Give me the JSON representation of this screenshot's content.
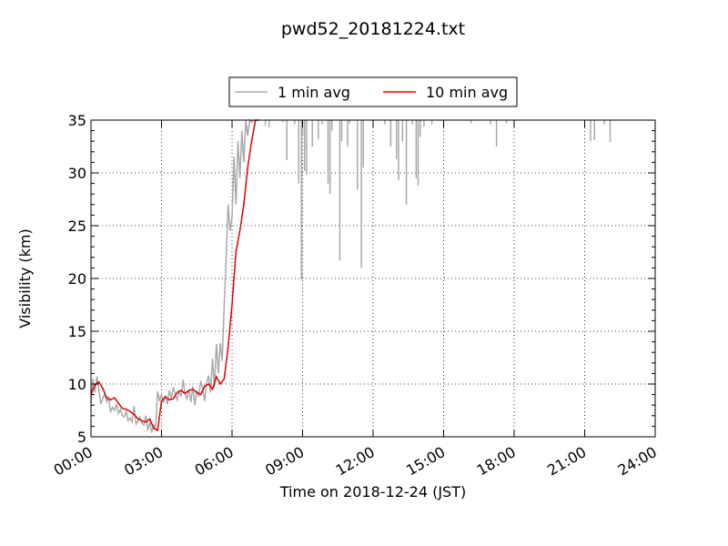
{
  "chart_data": {
    "type": "line",
    "title": "pwd52_20181224.txt",
    "xlabel": "Time on 2018-12-24 (JST)",
    "ylabel": "Visibility (km)",
    "xlim": [
      "00:00",
      "24:00"
    ],
    "ylim": [
      5,
      35
    ],
    "x_ticks": [
      "00:00",
      "03:00",
      "06:00",
      "09:00",
      "12:00",
      "15:00",
      "18:00",
      "21:00",
      "24:00"
    ],
    "y_ticks": [
      5,
      10,
      15,
      20,
      25,
      30,
      35
    ],
    "grid": true,
    "legend": {
      "placement": "top-center",
      "entries": [
        "1 min avg",
        "10 min avg"
      ]
    },
    "colors": {
      "1 min avg": "#a9a9a9",
      "10 min avg": "#e00000"
    },
    "series": [
      {
        "name": "1 min avg",
        "x": [
          "00:00",
          "00:05",
          "00:10",
          "00:15",
          "00:20",
          "00:25",
          "00:30",
          "00:35",
          "00:40",
          "00:45",
          "00:50",
          "00:55",
          "01:00",
          "01:05",
          "01:10",
          "01:15",
          "01:20",
          "01:25",
          "01:30",
          "01:35",
          "01:40",
          "01:45",
          "01:50",
          "01:55",
          "02:00",
          "02:05",
          "02:10",
          "02:15",
          "02:20",
          "02:25",
          "02:30",
          "02:35",
          "02:40",
          "02:45",
          "02:50",
          "02:55",
          "03:00",
          "03:05",
          "03:10",
          "03:15",
          "03:20",
          "03:25",
          "03:30",
          "03:35",
          "03:40",
          "03:45",
          "03:50",
          "03:55",
          "04:00",
          "04:05",
          "04:10",
          "04:15",
          "04:20",
          "04:25",
          "04:30",
          "04:35",
          "04:40",
          "04:45",
          "04:50",
          "04:55",
          "05:00",
          "05:05",
          "05:10",
          "05:15",
          "05:20",
          "05:25",
          "05:30",
          "05:35",
          "05:40",
          "05:45",
          "05:50",
          "05:55",
          "06:00",
          "06:05",
          "06:10",
          "06:15",
          "06:20",
          "06:25",
          "06:30",
          "06:35",
          "06:40",
          "06:45",
          "06:50",
          "06:55",
          "07:00",
          "07:05"
        ],
        "y": [
          8.2,
          10.5,
          9.2,
          10.7,
          9.5,
          8.1,
          8.6,
          9.1,
          8.3,
          8.8,
          7.4,
          7.8,
          7.5,
          8.1,
          7.2,
          7.6,
          7.0,
          6.9,
          7.4,
          6.5,
          6.8,
          6.4,
          7.9,
          6.2,
          6.5,
          6.9,
          6.3,
          6.1,
          7.0,
          5.6,
          6.4,
          5.4,
          6.1,
          5.8,
          9.3,
          8.4,
          9.0,
          8.2,
          8.9,
          8.1,
          9.4,
          8.6,
          9.7,
          9.0,
          8.5,
          9.3,
          8.8,
          10.4,
          9.1,
          8.6,
          9.5,
          8.3,
          9.8,
          8.0,
          9.4,
          8.8,
          10.3,
          9.6,
          8.4,
          10.1,
          10.8,
          9.2,
          12.4,
          9.6,
          13.8,
          11.0,
          13.9,
          12.2,
          17.5,
          22.0,
          27.0,
          24.5,
          25.8,
          31.5,
          27.0,
          33.0,
          29.5,
          34.0,
          31.0,
          35.0,
          33.5,
          35.0,
          34.8,
          35.0,
          35.0,
          35.0
        ]
      },
      {
        "name": "10 min avg",
        "x": [
          "00:00",
          "00:10",
          "00:20",
          "00:30",
          "00:40",
          "00:50",
          "01:00",
          "01:10",
          "01:20",
          "01:30",
          "01:40",
          "01:50",
          "02:00",
          "02:10",
          "02:20",
          "02:30",
          "02:40",
          "02:50",
          "03:00",
          "03:10",
          "03:20",
          "03:30",
          "03:40",
          "03:50",
          "04:00",
          "04:10",
          "04:20",
          "04:30",
          "04:40",
          "04:50",
          "05:00",
          "05:10",
          "05:20",
          "05:30",
          "05:40",
          "05:50",
          "06:00",
          "06:10",
          "06:20",
          "06:30",
          "06:40",
          "06:50",
          "07:00",
          "07:10"
        ],
        "y": [
          9.0,
          9.9,
          10.2,
          9.6,
          8.7,
          8.5,
          8.7,
          8.2,
          7.7,
          7.6,
          7.4,
          7.1,
          6.7,
          6.5,
          6.4,
          6.7,
          5.8,
          5.6,
          8.4,
          8.8,
          8.5,
          8.6,
          9.2,
          9.4,
          9.1,
          9.4,
          9.5,
          9.2,
          9.0,
          9.8,
          10.0,
          9.5,
          10.7,
          10.0,
          10.5,
          13.5,
          17.5,
          22.5,
          24.5,
          27.0,
          30.5,
          33.0,
          35.0,
          35.0
        ]
      },
      {
        "name": "",
        "role": "1 min avg upward spikes beyond plotted range; values are minimum dips from 35 km",
        "spikes": [
          {
            "x": "07:25",
            "y": 34.5
          },
          {
            "x": "07:35",
            "y": 34.3
          },
          {
            "x": "08:10",
            "y": 34.8
          },
          {
            "x": "08:20",
            "y": 31.2
          },
          {
            "x": "08:40",
            "y": 34.6
          },
          {
            "x": "08:50",
            "y": 29.0
          },
          {
            "x": "08:57",
            "y": 19.9
          },
          {
            "x": "09:00",
            "y": 33.5
          },
          {
            "x": "09:05",
            "y": 30.2
          },
          {
            "x": "09:10",
            "y": 29.8
          },
          {
            "x": "09:25",
            "y": 32.5
          },
          {
            "x": "09:40",
            "y": 33.2
          },
          {
            "x": "09:50",
            "y": 34.6
          },
          {
            "x": "10:05",
            "y": 29.0
          },
          {
            "x": "10:10",
            "y": 28.0
          },
          {
            "x": "10:15",
            "y": 34.0
          },
          {
            "x": "10:35",
            "y": 21.7
          },
          {
            "x": "10:40",
            "y": 33.0
          },
          {
            "x": "10:55",
            "y": 32.5
          },
          {
            "x": "11:00",
            "y": 34.7
          },
          {
            "x": "11:20",
            "y": 28.4
          },
          {
            "x": "11:30",
            "y": 21.0
          },
          {
            "x": "11:35",
            "y": 30.5
          },
          {
            "x": "12:30",
            "y": 34.6
          },
          {
            "x": "12:45",
            "y": 32.5
          },
          {
            "x": "13:00",
            "y": 31.3
          },
          {
            "x": "13:05",
            "y": 29.3
          },
          {
            "x": "13:15",
            "y": 33.0
          },
          {
            "x": "13:25",
            "y": 27.0
          },
          {
            "x": "13:40",
            "y": 34.6
          },
          {
            "x": "13:50",
            "y": 29.5
          },
          {
            "x": "13:55",
            "y": 28.8
          },
          {
            "x": "14:00",
            "y": 33.4
          },
          {
            "x": "14:10",
            "y": 34.4
          },
          {
            "x": "14:30",
            "y": 34.6
          },
          {
            "x": "16:10",
            "y": 34.7
          },
          {
            "x": "17:00",
            "y": 34.6
          },
          {
            "x": "17:15",
            "y": 32.5
          },
          {
            "x": "17:40",
            "y": 34.7
          },
          {
            "x": "21:15",
            "y": 33.0
          },
          {
            "x": "21:25",
            "y": 33.1
          },
          {
            "x": "21:50",
            "y": 34.6
          },
          {
            "x": "22:05",
            "y": 32.9
          }
        ]
      }
    ]
  }
}
